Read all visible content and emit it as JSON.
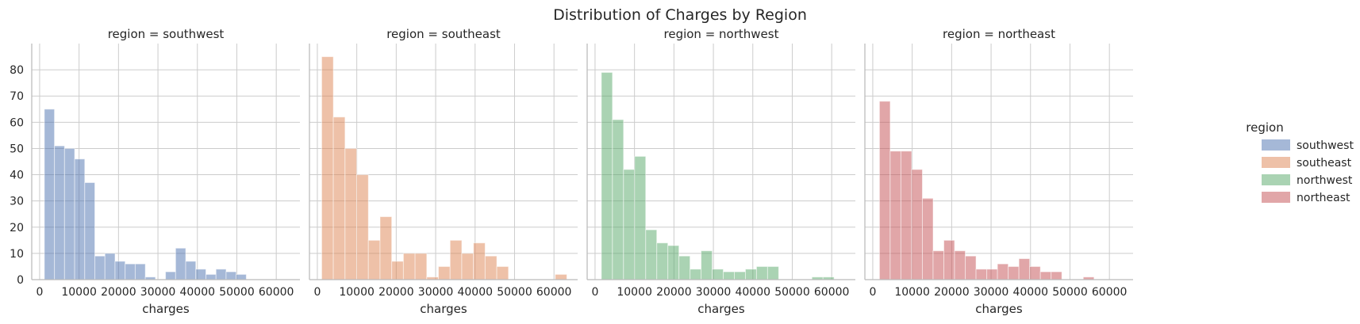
{
  "title": "Distribution of Charges by Region",
  "chart_data": {
    "type": "histogram",
    "title": "Distribution of Charges by Region",
    "xlabel": "charges",
    "ylabel": "",
    "xlim": [
      -2000,
      66000
    ],
    "ylim": [
      0,
      90
    ],
    "x_ticks": [
      0,
      10000,
      20000,
      30000,
      40000,
      50000,
      60000
    ],
    "y_ticks": [
      0,
      10,
      20,
      30,
      40,
      50,
      60,
      70,
      80
    ],
    "grid": true,
    "legend": {
      "title": "region",
      "position": "right",
      "entries": [
        {
          "label": "southwest",
          "color": "#4c72b0"
        },
        {
          "label": "southeast",
          "color": "#dd8452"
        },
        {
          "label": "northwest",
          "color": "#55a868"
        },
        {
          "label": "northeast",
          "color": "#c44e52"
        }
      ]
    },
    "facets": [
      {
        "title": "region = southwest",
        "name": "southwest",
        "color": "#4c72b0",
        "bin_start": 1200,
        "bin_width": 2560,
        "counts": [
          65,
          51,
          50,
          46,
          37,
          9,
          10,
          7,
          6,
          6,
          1,
          0,
          3,
          12,
          7,
          4,
          2,
          4,
          3,
          2,
          0,
          0,
          0,
          0
        ]
      },
      {
        "title": "region = southeast",
        "name": "southeast",
        "color": "#dd8452",
        "bin_start": 1100,
        "bin_width": 2960,
        "counts": [
          85,
          62,
          50,
          40,
          15,
          24,
          7,
          10,
          10,
          1,
          5,
          15,
          10,
          14,
          9,
          5,
          0,
          0,
          0,
          0,
          2
        ]
      },
      {
        "title": "region = northwest",
        "name": "northwest",
        "color": "#55a868",
        "bin_start": 1600,
        "bin_width": 2810,
        "counts": [
          79,
          61,
          42,
          47,
          19,
          14,
          13,
          9,
          4,
          11,
          4,
          3,
          3,
          4,
          5,
          5,
          0,
          0,
          0,
          1,
          1
        ]
      },
      {
        "title": "region = northeast",
        "name": "northeast",
        "color": "#c44e52",
        "bin_start": 1700,
        "bin_width": 2720,
        "counts": [
          68,
          49,
          49,
          42,
          31,
          11,
          15,
          11,
          9,
          4,
          4,
          6,
          5,
          8,
          5,
          3,
          3,
          0,
          0,
          1
        ]
      }
    ]
  }
}
